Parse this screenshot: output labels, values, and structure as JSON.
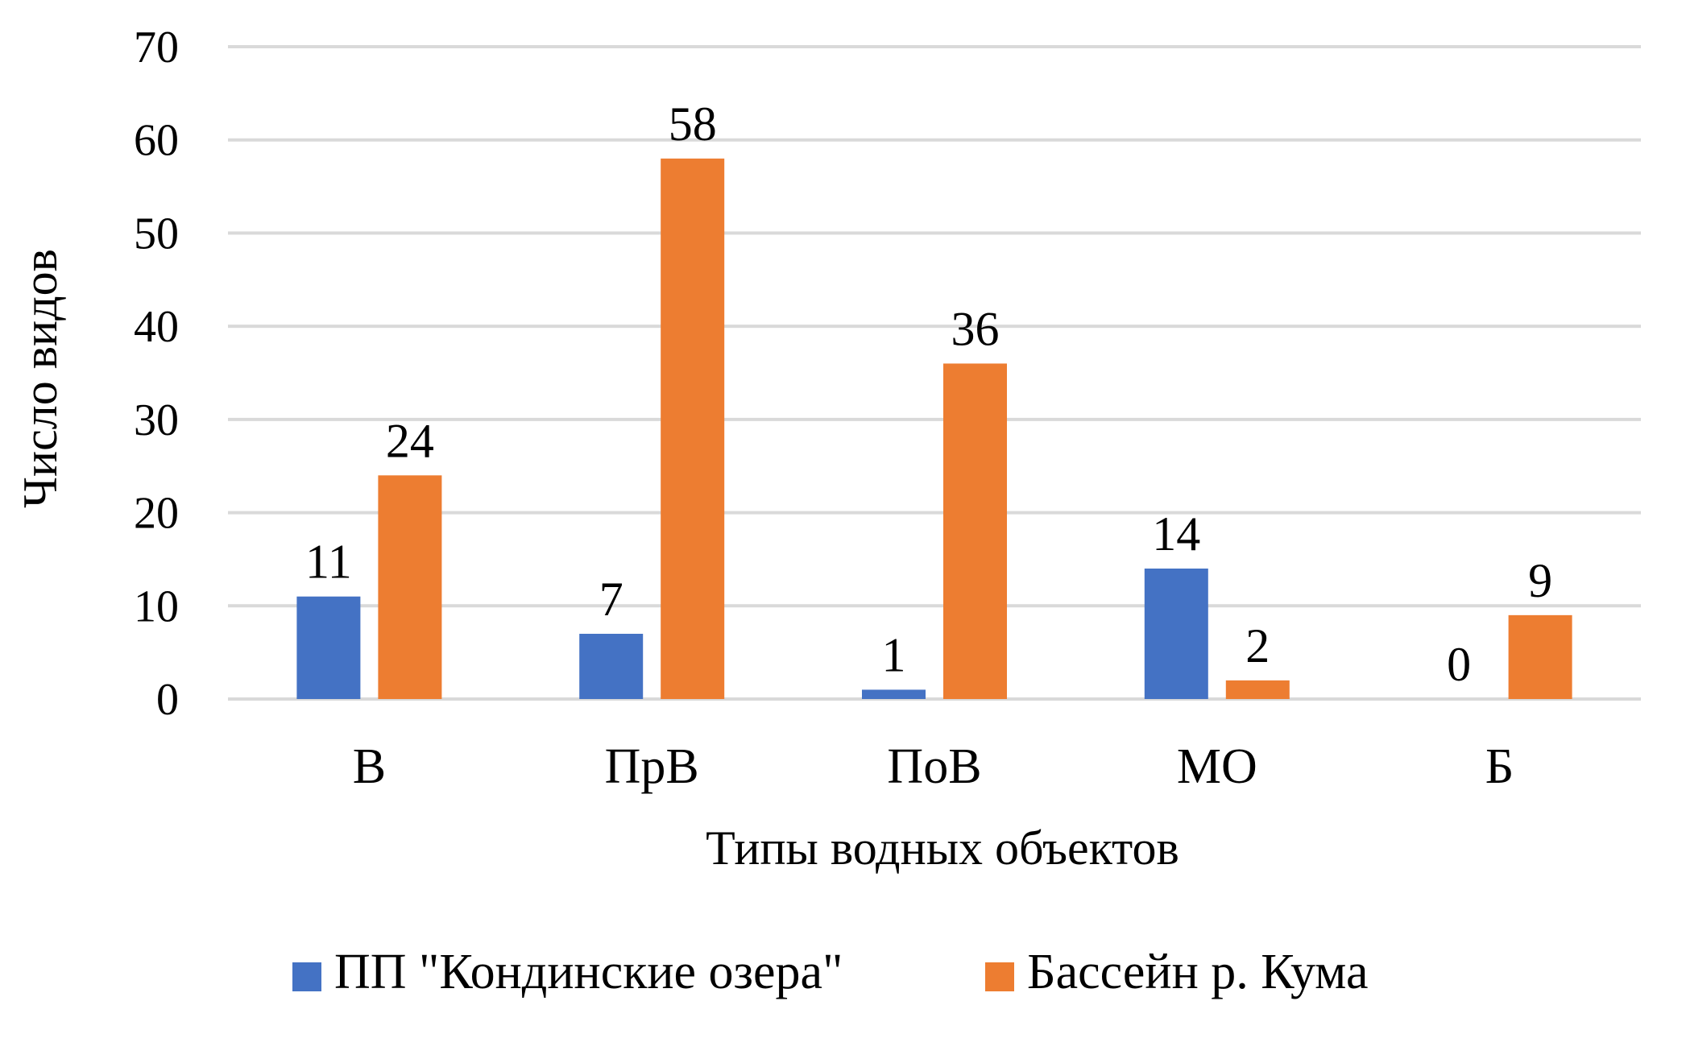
{
  "chart_data": {
    "type": "bar",
    "categories": [
      "В",
      "ПрВ",
      "ПоВ",
      "МО",
      "Б"
    ],
    "series": [
      {
        "name": "ПП \"Кондинские озера\"",
        "values": [
          11,
          7,
          1,
          14,
          0
        ],
        "color": "#4472C4"
      },
      {
        "name": "Бассейн р. Кума",
        "values": [
          24,
          58,
          36,
          2,
          9
        ],
        "color": "#ED7D31"
      }
    ],
    "xlabel": "Типы водных объектов",
    "ylabel": "Число видов",
    "ylim": [
      0,
      70
    ],
    "yticks": [
      0,
      10,
      20,
      30,
      40,
      50,
      60,
      70
    ],
    "grid": true,
    "gridline_color": "#D9D9D9",
    "legend_position": "bottom",
    "data_labels": true
  }
}
